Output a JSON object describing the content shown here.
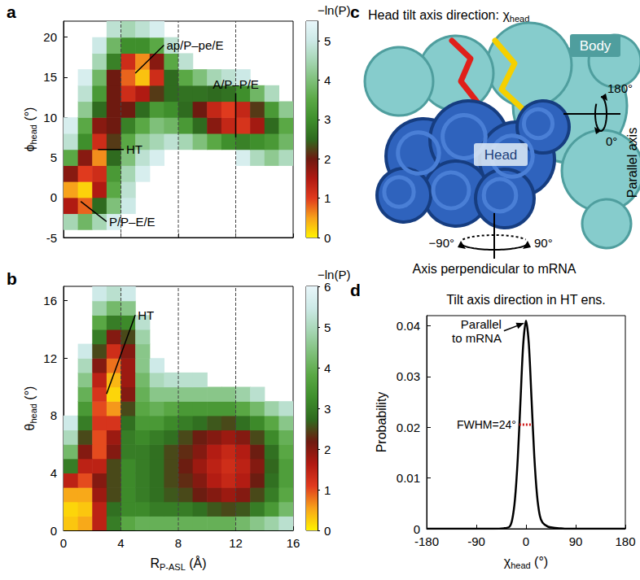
{
  "chart_data": [
    {
      "panel": "a",
      "type": "heatmap",
      "ylabel": [
        "ϕ",
        "head",
        " (°)"
      ],
      "xlim": [
        0,
        16
      ],
      "xticks": [
        0,
        4,
        8,
        12,
        16
      ],
      "ylim": [
        -5,
        22
      ],
      "yticks": [
        -5,
        0,
        5,
        10,
        15,
        20
      ],
      "tick_labels": "y",
      "x_edges": [
        0,
        1,
        2,
        3,
        4,
        5,
        6,
        7,
        8,
        9,
        10,
        11,
        12,
        13,
        14,
        15,
        16
      ],
      "y_edges": [
        -4,
        -2,
        0,
        2,
        4,
        6,
        8,
        10,
        12,
        14,
        16,
        18,
        20,
        22
      ],
      "z": [
        [
          4.5,
          3.8,
          4.5,
          5.2,
          null,
          null,
          null,
          null,
          null,
          null,
          null,
          null,
          null,
          null,
          null,
          null
        ],
        [
          1.5,
          0.8,
          2.5,
          4,
          5,
          null,
          null,
          null,
          null,
          null,
          null,
          null,
          null,
          null,
          null,
          null
        ],
        [
          0.5,
          0.2,
          1.5,
          3.5,
          4.8,
          null,
          null,
          null,
          null,
          null,
          null,
          null,
          null,
          null,
          null,
          null
        ],
        [
          1.8,
          1,
          1.2,
          3.2,
          4.5,
          5.2,
          null,
          null,
          null,
          null,
          null,
          null,
          null,
          null,
          null,
          null
        ],
        [
          3.5,
          1.8,
          0.6,
          2.5,
          4,
          4.8,
          5.2,
          null,
          null,
          null,
          null,
          null,
          5.2,
          4.6,
          4.2,
          4.6
        ],
        [
          4.8,
          3,
          1.2,
          2.2,
          3.5,
          4.2,
          4.5,
          4.8,
          4.5,
          4,
          3.5,
          3,
          2.8,
          3,
          3.2,
          3.8
        ],
        [
          5.2,
          3.5,
          1.8,
          2,
          2.8,
          3.5,
          4,
          3.8,
          3.2,
          2.5,
          1.8,
          1.3,
          1.1,
          1.6,
          2.5,
          3.5
        ],
        [
          null,
          4.2,
          2.5,
          2,
          2,
          2.5,
          3.2,
          3,
          2.5,
          2,
          1.3,
          1,
          1.3,
          2.2,
          3.2,
          4.2
        ],
        [
          null,
          4.8,
          3.2,
          2,
          1.2,
          1.5,
          2.2,
          2.5,
          2.6,
          2.6,
          2.5,
          2.6,
          3,
          3.8,
          4.6,
          null
        ],
        [
          null,
          5.2,
          3.8,
          2,
          0.8,
          0.3,
          1.2,
          2.5,
          3.5,
          4,
          4.5,
          4.8,
          5,
          null,
          null,
          null
        ],
        [
          null,
          null,
          4.5,
          2.8,
          1.2,
          0.6,
          1.8,
          3.5,
          4.8,
          null,
          null,
          null,
          null,
          null,
          null,
          null
        ],
        [
          null,
          null,
          5,
          3.8,
          3,
          3,
          3.5,
          4.8,
          null,
          null,
          null,
          null,
          null,
          null,
          null,
          null
        ],
        [
          null,
          null,
          null,
          4.8,
          4.5,
          4.8,
          5.2,
          null,
          null,
          null,
          null,
          null,
          null,
          null,
          null,
          null
        ]
      ],
      "colorbar": {
        "label": "−ln(P)",
        "range": [
          0,
          5.5
        ],
        "ticks": [
          0,
          1,
          2,
          3,
          4,
          5
        ]
      },
      "vlines": [
        4,
        8,
        12
      ],
      "annotations": [
        {
          "text": "ap/P–pe/E",
          "x": 5,
          "y": 15.5,
          "tx": 7,
          "ty": 19
        },
        {
          "text": "HT",
          "x": 2.4,
          "y": 6,
          "tx": 4.2,
          "ty": 6
        },
        {
          "text": "P/P–E/E",
          "x": 1.2,
          "y": -0.5,
          "tx": 3,
          "ty": -3
        },
        {
          "text": "A/P–P/E",
          "x": 12,
          "y": 7.5,
          "tx": 12,
          "ty": 13
        }
      ]
    },
    {
      "panel": "b",
      "type": "heatmap",
      "xlabel": [
        "R",
        "P-ASL",
        " (Å)"
      ],
      "ylabel": [
        "θ",
        "head",
        " (°)"
      ],
      "xlim": [
        0,
        16
      ],
      "xticks": [
        0,
        4,
        8,
        12,
        16
      ],
      "ylim": [
        0,
        17
      ],
      "yticks": [
        0,
        4,
        8,
        12,
        16
      ],
      "x_edges": [
        0,
        1,
        2,
        3,
        4,
        5,
        6,
        7,
        8,
        9,
        10,
        11,
        12,
        13,
        14,
        15,
        16
      ],
      "y_edges": [
        0,
        1,
        2,
        3,
        4,
        5,
        6,
        7,
        8,
        9,
        10,
        11,
        12,
        13,
        14,
        15,
        16,
        17
      ],
      "z": [
        [
          0.3,
          0.5,
          1.5,
          3,
          3.8,
          4,
          4,
          4,
          4,
          4,
          4,
          4,
          4.2,
          4.5,
          4.8,
          5.2
        ],
        [
          0.2,
          0.3,
          1.5,
          2.8,
          3.2,
          3.2,
          3,
          3,
          3,
          2.8,
          2.6,
          2.5,
          2.6,
          3,
          3.5,
          4.2
        ],
        [
          0.5,
          0.5,
          1.8,
          2.5,
          3.2,
          3,
          2.8,
          2.6,
          2.5,
          2.2,
          2,
          1.8,
          2,
          2.5,
          3,
          3.8
        ],
        [
          1.5,
          1,
          2,
          2.5,
          3.2,
          3,
          2.8,
          2.5,
          2.3,
          2,
          1.6,
          1.4,
          1.6,
          2.2,
          2.8,
          3.6
        ],
        [
          3,
          1.5,
          1.5,
          2.5,
          3.2,
          3,
          2.8,
          2.5,
          2.2,
          1.8,
          1.5,
          1.3,
          1.5,
          2,
          2.7,
          3.6
        ],
        [
          4.2,
          2,
          1,
          2,
          3,
          3,
          2.8,
          2.5,
          2.3,
          2,
          1.6,
          1.4,
          1.6,
          2.2,
          2.8,
          3.8
        ],
        [
          5,
          2.5,
          1,
          1.8,
          3,
          3.2,
          3,
          2.8,
          2.5,
          2.2,
          2,
          1.8,
          2,
          2.5,
          3.2,
          4
        ],
        [
          5.5,
          3,
          1.2,
          1.2,
          2.8,
          3.5,
          3.5,
          3.2,
          3,
          2.8,
          2.6,
          2.5,
          2.8,
          3.2,
          3.8,
          4.5
        ],
        [
          null,
          3.5,
          1,
          0.6,
          2.5,
          3.8,
          4,
          3.8,
          3.5,
          3.5,
          3.5,
          3.5,
          3.8,
          4.2,
          4.8,
          5.2
        ],
        [
          null,
          4,
          1.2,
          0.2,
          2,
          4,
          4.5,
          4.5,
          4.5,
          4.5,
          4.5,
          4.5,
          4.8,
          5.2,
          null,
          null
        ],
        [
          null,
          4.5,
          1.5,
          0.4,
          1.8,
          4.2,
          5,
          5.2,
          5.2,
          5.2,
          null,
          null,
          null,
          null,
          null,
          null
        ],
        [
          null,
          5,
          2,
          0.8,
          1.8,
          4.5,
          5.5,
          null,
          null,
          null,
          null,
          null,
          null,
          null,
          null,
          null
        ],
        [
          null,
          5.5,
          2.5,
          1.3,
          2,
          4.5,
          null,
          null,
          null,
          null,
          null,
          null,
          null,
          null,
          null,
          null
        ],
        [
          null,
          null,
          3,
          2,
          2.5,
          4.8,
          null,
          null,
          null,
          null,
          null,
          null,
          null,
          null,
          null,
          null
        ],
        [
          null,
          null,
          3.8,
          3,
          3.2,
          5.2,
          null,
          null,
          null,
          null,
          null,
          null,
          null,
          null,
          null,
          null
        ],
        [
          null,
          null,
          4.8,
          4.2,
          4.5,
          null,
          null,
          null,
          null,
          null,
          null,
          null,
          null,
          null,
          null,
          null
        ],
        [
          null,
          null,
          5.5,
          5.2,
          5.5,
          null,
          null,
          null,
          null,
          null,
          null,
          null,
          null,
          null,
          null,
          null
        ]
      ],
      "colorbar": {
        "label": "−ln(P)",
        "range": [
          0,
          6
        ],
        "ticks": [
          0,
          1,
          2,
          3,
          4,
          5,
          6
        ]
      },
      "vlines": [
        4,
        8,
        12
      ],
      "annotations": [
        {
          "text": "HT",
          "x": 3,
          "y": 9.5,
          "tx": 5,
          "ty": 15
        }
      ]
    },
    {
      "panel": "d",
      "type": "line",
      "title": "Tilt axis direction in HT ens.",
      "xlabel": [
        "χ",
        "head",
        " (°)"
      ],
      "ylabel": "Probability",
      "xlim": [
        -180,
        180
      ],
      "xticks": [
        -180,
        -90,
        0,
        90,
        180
      ],
      "ylim": [
        0,
        0.042
      ],
      "yticks": [
        0,
        0.01,
        0.02,
        0.03,
        0.04
      ],
      "x": [
        -180,
        -60,
        -40,
        -30,
        -25,
        -20,
        -15,
        -10,
        -5,
        0,
        5,
        10,
        15,
        20,
        25,
        30,
        40,
        50,
        60,
        70,
        180
      ],
      "values": [
        0,
        0,
        0.0001,
        0.0004,
        0.0018,
        0.0058,
        0.0137,
        0.0252,
        0.0364,
        0.041,
        0.0366,
        0.0256,
        0.0143,
        0.0066,
        0.0026,
        0.0012,
        0.0004,
        0.0002,
        0.0001,
        0,
        0
      ],
      "color": "#000000",
      "fwhm": {
        "text": "FWHM=24°",
        "y": 0.0205,
        "x": [
          -12,
          12
        ]
      },
      "annotations": [
        {
          "text": "Parallel\nto mRNA",
          "x": -4,
          "y": 0.0405,
          "tx": -40,
          "ty": 0.039
        }
      ]
    }
  ],
  "diagram": {
    "panel": "c",
    "title": [
      "Head tilt axis direction: χ",
      "head"
    ],
    "head_label": "Head",
    "body_label": "Body",
    "parallel_axis": {
      "label": "Parallel axis",
      "top": "180°",
      "bottom": "0°"
    },
    "perpendicular_axis": {
      "label": "Axis perpendicular to mRNA",
      "left": "−90°",
      "right": "90°"
    }
  }
}
